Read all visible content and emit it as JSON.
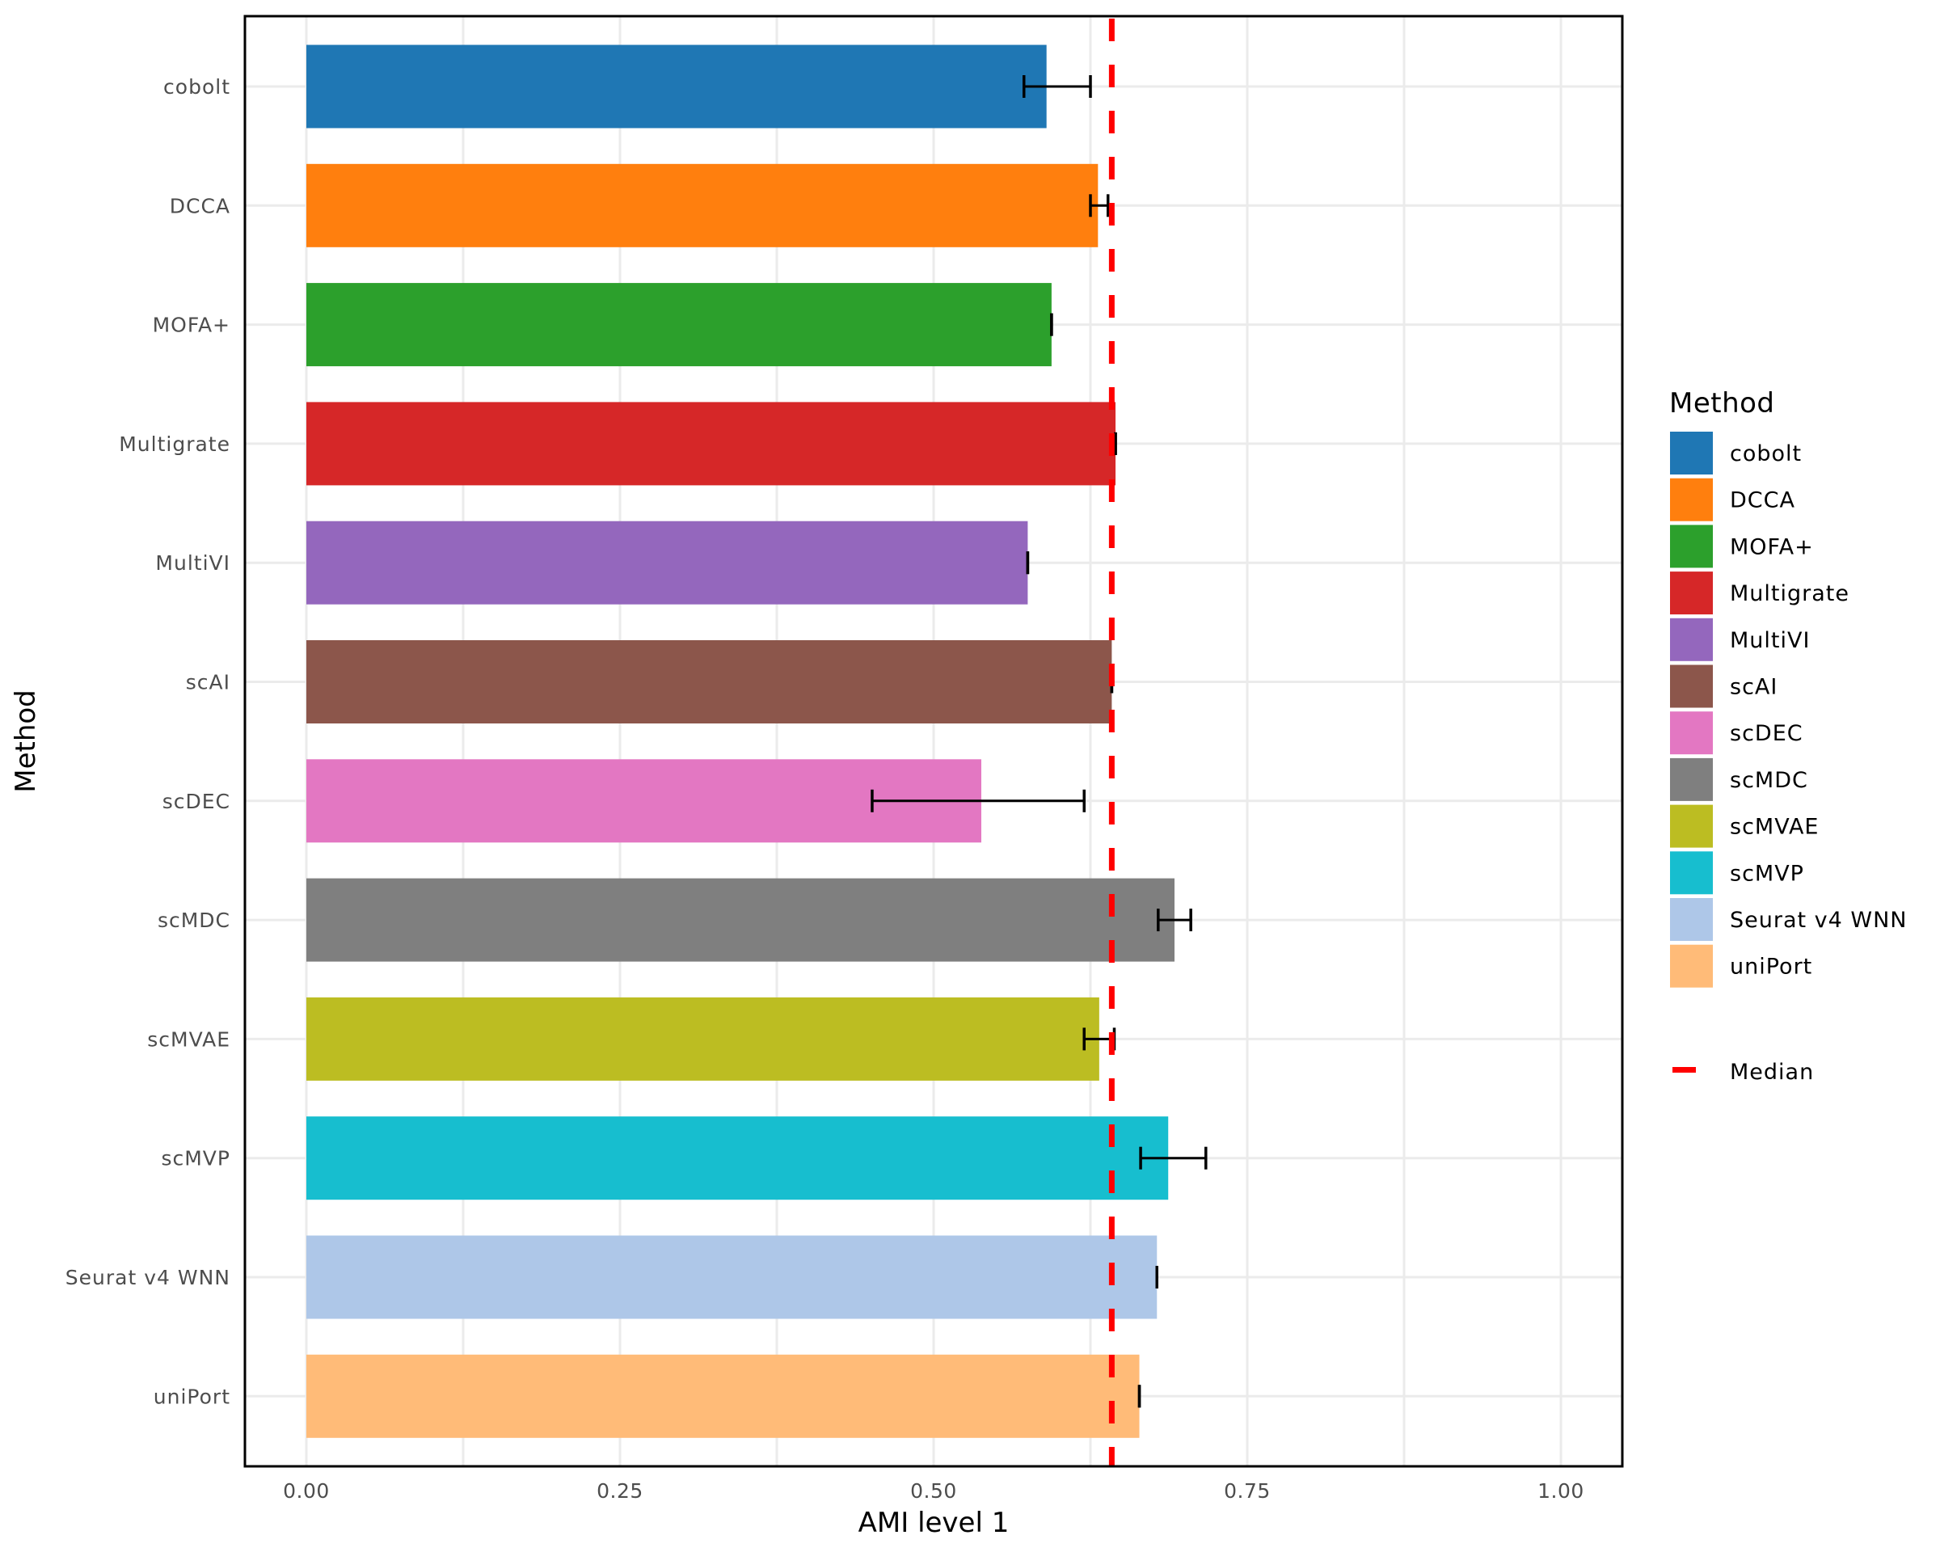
{
  "chart_data": {
    "type": "bar",
    "orientation": "horizontal",
    "title": "",
    "xlabel": "AMI level 1",
    "ylabel": "Method",
    "xlim": [
      0,
      1
    ],
    "x_ticks": [
      0,
      0.25,
      0.5,
      0.75,
      1
    ],
    "x_tick_labels": [
      "0.00",
      "0.25",
      "0.50",
      "0.75",
      "1.00"
    ],
    "grid": true,
    "categories": [
      "cobolt",
      "DCCA",
      "MOFA+",
      "Multigrate",
      "MultiVI",
      "scAI",
      "scDEC",
      "scMDC",
      "scMVAE",
      "scMVP",
      "Seurat v4 WNN",
      "uniPort"
    ],
    "values": [
      0.59,
      0.631,
      0.594,
      0.645,
      0.575,
      0.642,
      0.538,
      0.692,
      0.632,
      0.687,
      0.678,
      0.664
    ],
    "error_low": [
      0.572,
      0.625,
      0.594,
      0.645,
      0.575,
      0.642,
      0.451,
      0.679,
      0.62,
      0.665,
      0.678,
      0.664
    ],
    "error_high": [
      0.625,
      0.639,
      0.594,
      0.645,
      0.575,
      0.642,
      0.62,
      0.705,
      0.644,
      0.717,
      0.678,
      0.664
    ],
    "colors": [
      "#1f77b4",
      "#ff7f0e",
      "#2ca02c",
      "#d62728",
      "#9467bd",
      "#8c564b",
      "#e377c2",
      "#7f7f7f",
      "#bcbd22",
      "#17becf",
      "#aec7e8",
      "#ffbb78"
    ],
    "median": 0.642,
    "median_color": "#ff0000",
    "legend": {
      "title": "Method",
      "placement": "right",
      "entries": [
        "cobolt",
        "DCCA",
        "MOFA+",
        "Multigrate",
        "MultiVI",
        "scAI",
        "scDEC",
        "scMDC",
        "scMVAE",
        "scMVP",
        "Seurat v4 WNN",
        "uniPort"
      ],
      "median_label": "Median"
    }
  }
}
